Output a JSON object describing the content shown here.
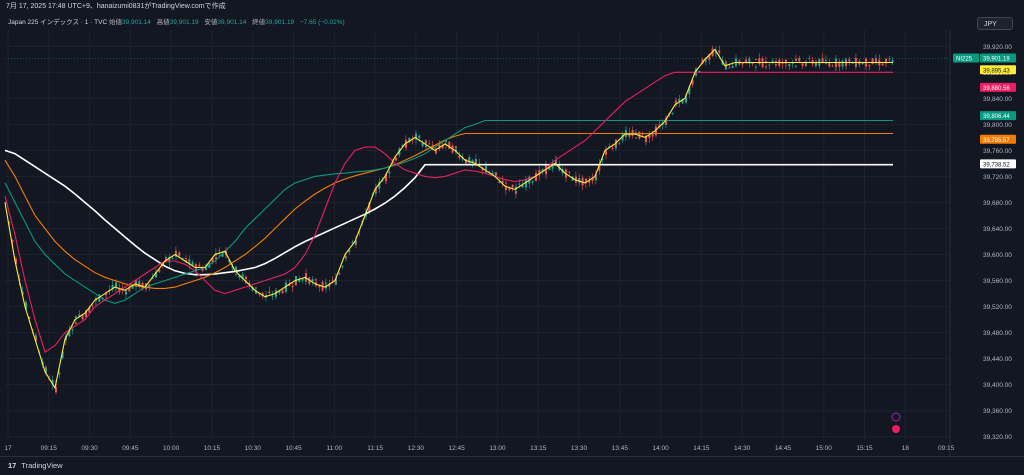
{
  "header": {
    "text": "7月 17, 2025 17:48 UTC+9、hanaizumi0831がTradingView.comで作成"
  },
  "legend": {
    "symbol": "Japan 225 インデックス · 1 · TVC",
    "open_label": "始値",
    "open": "39,901.14",
    "high_label": "高値",
    "high": "39,901.19",
    "low_label": "安値",
    "low": "39,901.14",
    "close_label": "終値",
    "close": "39,901.19",
    "change": "−7.65 (−0.02%)"
  },
  "currency": "JPY",
  "footer": {
    "brand": "TradingView",
    "logo": "17"
  },
  "colors": {
    "up": "#26a69a",
    "down": "#ef5350",
    "ma_yellow": "#ffeb3b",
    "ma_red": "#e91e63",
    "ma_teal": "#089981",
    "ma_orange": "#f57c00",
    "ma_white": "#ffffff"
  },
  "chart_data": {
    "type": "line",
    "y_ticks": [
      "39,320.00",
      "39,360.00",
      "39,400.00",
      "39,440.00",
      "39,480.00",
      "39,520.00",
      "39,560.00",
      "39,600.00",
      "39,640.00",
      "39,680.00",
      "39,720.00",
      "39,760.00",
      "39,800.00",
      "39,840.00",
      "39,880.00",
      "39,920.00"
    ],
    "ylim": [
      39315,
      39945
    ],
    "x_ticks": [
      "17",
      "09:15",
      "09:30",
      "09:45",
      "10:00",
      "10:15",
      "10:30",
      "10:45",
      "11:00",
      "11:15",
      "12:30",
      "12:45",
      "13:00",
      "13:15",
      "13:30",
      "13:45",
      "14:00",
      "14:15",
      "14:30",
      "14:45",
      "15:00",
      "15:15",
      "18",
      "09:15"
    ],
    "price_labels": [
      {
        "text": "NI225",
        "value": 39901.19,
        "color": "#089981"
      },
      {
        "text": "39,901.19",
        "value": 39901.19,
        "color": "#089981"
      },
      {
        "text": "39,895.43",
        "value": 39895.43,
        "color": "#ffeb3b"
      },
      {
        "text": "39,880.56",
        "value": 39880.56,
        "color": "#e91e63"
      },
      {
        "text": "39,806.44",
        "value": 39806.44,
        "color": "#089981"
      },
      {
        "text": "39,785.57",
        "value": 39785.57,
        "color": "#f57c00"
      },
      {
        "text": "39,738.52",
        "value": 39738.52,
        "color": "#ffffff"
      }
    ],
    "last_price": 39901.19,
    "series_x": [
      0,
      10,
      20,
      30,
      40,
      50,
      60,
      70,
      80,
      90,
      100,
      110,
      120,
      130,
      140,
      150,
      160,
      170,
      180,
      190,
      200,
      210,
      220,
      230,
      240,
      250,
      260,
      270,
      280,
      290,
      300,
      310,
      320,
      330,
      340,
      350,
      360,
      370,
      380,
      390,
      400,
      410,
      420,
      430,
      440,
      450,
      460,
      470,
      480,
      490,
      500,
      510,
      520,
      530,
      540,
      550,
      560,
      570,
      580,
      590,
      600,
      610,
      620,
      630,
      640,
      650,
      660,
      670,
      680,
      690,
      700,
      710,
      720,
      730,
      740,
      750,
      760,
      770,
      780,
      790,
      800,
      810,
      820,
      830,
      840,
      850,
      860,
      870,
      880,
      888
    ],
    "series": [
      {
        "color": "#ffeb3b",
        "values": [
          39680,
          39590,
          39520,
          39470,
          39420,
          39395,
          39470,
          39500,
          39510,
          39530,
          39540,
          39550,
          39545,
          39555,
          39550,
          39570,
          39590,
          39600,
          39590,
          39580,
          39580,
          39600,
          39605,
          39575,
          39560,
          39545,
          39535,
          39540,
          39550,
          39560,
          39565,
          39555,
          39550,
          39560,
          39600,
          39620,
          39660,
          39700,
          39720,
          39750,
          39770,
          39780,
          39770,
          39760,
          39770,
          39760,
          39745,
          39740,
          39730,
          39720,
          39705,
          39700,
          39710,
          39720,
          39730,
          39740,
          39725,
          39715,
          39710,
          39720,
          39760,
          39770,
          39785,
          39785,
          39780,
          39790,
          39805,
          39830,
          39840,
          39880,
          39900,
          39915,
          39890,
          39895,
          39895,
          39895,
          39895,
          39895,
          39895,
          39895,
          39895,
          39895,
          39895,
          39895,
          39895,
          39895,
          39895,
          39895,
          39895,
          39895
        ]
      },
      {
        "color": "#e91e63",
        "values": [
          39690,
          39630,
          39560,
          39500,
          39450,
          39460,
          39480,
          39490,
          39500,
          39520,
          39530,
          39540,
          39550,
          39560,
          39570,
          39580,
          39590,
          39590,
          39585,
          39575,
          39560,
          39545,
          39540,
          39545,
          39550,
          39555,
          39560,
          39565,
          39570,
          39580,
          39600,
          39630,
          39670,
          39710,
          39740,
          39760,
          39765,
          39765,
          39755,
          39740,
          39730,
          39725,
          39720,
          39718,
          39720,
          39725,
          39730,
          39728,
          39725,
          39720,
          39715,
          39712,
          39715,
          39720,
          39730,
          39745,
          39755,
          39765,
          39775,
          39790,
          39805,
          39820,
          39835,
          39845,
          39855,
          39865,
          39875,
          39880,
          39880,
          39880,
          39880,
          39880,
          39880,
          39880,
          39880,
          39880,
          39880,
          39880,
          39880,
          39880,
          39880,
          39880,
          39880,
          39880,
          39880,
          39880,
          39880,
          39880,
          39880,
          39880
        ]
      },
      {
        "color": "#089981",
        "values": [
          39710,
          39680,
          39650,
          39620,
          39600,
          39585,
          39570,
          39560,
          39550,
          39540,
          39530,
          39525,
          39530,
          39540,
          39550,
          39555,
          39560,
          39565,
          39570,
          39575,
          39580,
          39590,
          39605,
          39620,
          39640,
          39655,
          39670,
          39685,
          39700,
          39710,
          39715,
          39720,
          39722,
          39724,
          39725,
          39727,
          39728,
          39730,
          39733,
          39737,
          39742,
          39748,
          39755,
          39765,
          39775,
          39785,
          39795,
          39800,
          39806,
          39806,
          39806,
          39806,
          39806,
          39806,
          39806,
          39806,
          39806,
          39806,
          39806,
          39806,
          39806,
          39806,
          39806,
          39806,
          39806,
          39806,
          39806,
          39806,
          39806,
          39806,
          39806,
          39806,
          39806,
          39806,
          39806,
          39806,
          39806,
          39806,
          39806,
          39806,
          39806,
          39806,
          39806,
          39806,
          39806,
          39806,
          39806,
          39806,
          39806,
          39806
        ]
      },
      {
        "color": "#f57c00",
        "values": [
          39745,
          39720,
          39690,
          39660,
          39640,
          39620,
          39605,
          39592,
          39582,
          39572,
          39565,
          39560,
          39555,
          39552,
          39550,
          39548,
          39548,
          39550,
          39555,
          39560,
          39565,
          39572,
          39580,
          39590,
          39600,
          39612,
          39625,
          39640,
          39655,
          39670,
          39682,
          39693,
          39702,
          39710,
          39716,
          39721,
          39725,
          39729,
          39733,
          39738,
          39745,
          39752,
          39760,
          39768,
          39776,
          39782,
          39786,
          39786,
          39786,
          39786,
          39786,
          39786,
          39786,
          39786,
          39786,
          39786,
          39786,
          39786,
          39786,
          39786,
          39786,
          39786,
          39786,
          39786,
          39786,
          39786,
          39786,
          39786,
          39786,
          39786,
          39786,
          39786,
          39786,
          39786,
          39786,
          39786,
          39786,
          39786,
          39786,
          39786,
          39786,
          39786,
          39786,
          39786,
          39786,
          39786,
          39786,
          39786,
          39786,
          39786
        ]
      },
      {
        "color": "#ffffff",
        "values": [
          39760,
          39755,
          39745,
          39735,
          39725,
          39715,
          39705,
          39693,
          39680,
          39667,
          39653,
          39640,
          39627,
          39614,
          39602,
          39592,
          39582,
          39575,
          39571,
          39569,
          39569,
          39570,
          39572,
          39574,
          39577,
          39580,
          39586,
          39594,
          39603,
          39612,
          39620,
          39627,
          39634,
          39641,
          39648,
          39655,
          39662,
          39670,
          39679,
          39690,
          39703,
          39718,
          39738,
          39738,
          39738,
          39738,
          39738,
          39738,
          39738,
          39738,
          39738,
          39738,
          39738,
          39738,
          39738,
          39738,
          39738,
          39738,
          39738,
          39738,
          39738,
          39738,
          39738,
          39738,
          39738,
          39738,
          39738,
          39738,
          39738,
          39738,
          39738,
          39738,
          39738,
          39738,
          39738,
          39738,
          39738,
          39738,
          39738,
          39738,
          39738,
          39738,
          39738,
          39738,
          39738,
          39738,
          39738,
          39738,
          39738,
          39738
        ]
      }
    ]
  }
}
